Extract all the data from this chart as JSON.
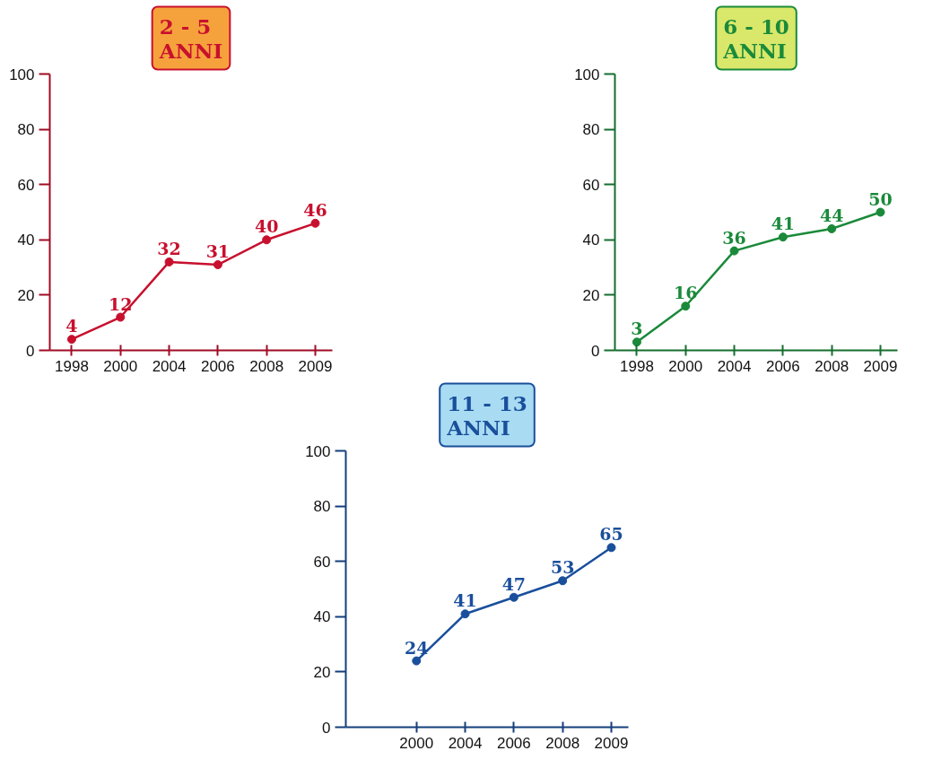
{
  "chart_data": [
    {
      "type": "line",
      "title": "2 - 5\nANNI",
      "categories": [
        "1998",
        "2000",
        "2004",
        "2006",
        "2008",
        "2009"
      ],
      "series": [
        {
          "color": "#c8102e",
          "values": [
            4,
            12,
            32,
            31,
            40,
            46
          ]
        }
      ],
      "ylim": [
        0,
        100
      ],
      "yticks": [
        0,
        20,
        40,
        60,
        80,
        100
      ],
      "data_labels": true,
      "marker": "circle",
      "grid": false
    },
    {
      "type": "line",
      "title": "6 - 10\nANNI",
      "categories": [
        "1998",
        "2000",
        "2004",
        "2006",
        "2008",
        "2009"
      ],
      "series": [
        {
          "color": "#1a8a3a",
          "values": [
            3,
            16,
            36,
            41,
            44,
            50
          ]
        }
      ],
      "ylim": [
        0,
        100
      ],
      "yticks": [
        0,
        20,
        40,
        60,
        80,
        100
      ],
      "data_labels": true,
      "marker": "circle",
      "grid": false
    },
    {
      "type": "line",
      "title": "11 - 13\nANNI",
      "categories": [
        "2000",
        "2004",
        "2006",
        "2008",
        "2009"
      ],
      "series": [
        {
          "color": "#1a4f9c",
          "values": [
            24,
            41,
            47,
            53,
            65
          ]
        }
      ],
      "ylim": [
        0,
        100
      ],
      "yticks": [
        0,
        20,
        40,
        60,
        80,
        100
      ],
      "data_labels": true,
      "marker": "circle",
      "grid": false
    }
  ]
}
